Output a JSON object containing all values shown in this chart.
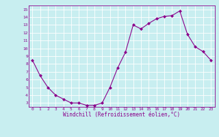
{
  "x": [
    0,
    1,
    2,
    3,
    4,
    5,
    6,
    7,
    8,
    9,
    10,
    11,
    12,
    13,
    14,
    15,
    16,
    17,
    18,
    19,
    20,
    21,
    22,
    23
  ],
  "y": [
    8.5,
    6.5,
    5.0,
    4.0,
    3.5,
    3.0,
    3.0,
    2.7,
    2.7,
    3.0,
    5.0,
    7.5,
    9.5,
    13.0,
    12.5,
    13.2,
    13.8,
    14.1,
    14.2,
    14.8,
    11.8,
    10.2,
    9.6,
    8.5
  ],
  "line_color": "#8B008B",
  "marker": "D",
  "marker_size": 2,
  "bg_color": "#c8eef0",
  "grid_color": "#ffffff",
  "xlabel": "Windchill (Refroidissement éolien,°C)",
  "xlabel_color": "#8B008B",
  "tick_color": "#8B008B",
  "ylim": [
    2.5,
    15.5
  ],
  "xlim": [
    -0.5,
    23.5
  ],
  "yticks": [
    3,
    4,
    5,
    6,
    7,
    8,
    9,
    10,
    11,
    12,
    13,
    14,
    15
  ],
  "xticks": [
    0,
    1,
    2,
    3,
    4,
    5,
    6,
    7,
    8,
    9,
    10,
    11,
    12,
    13,
    14,
    15,
    16,
    17,
    18,
    19,
    20,
    21,
    22,
    23
  ]
}
